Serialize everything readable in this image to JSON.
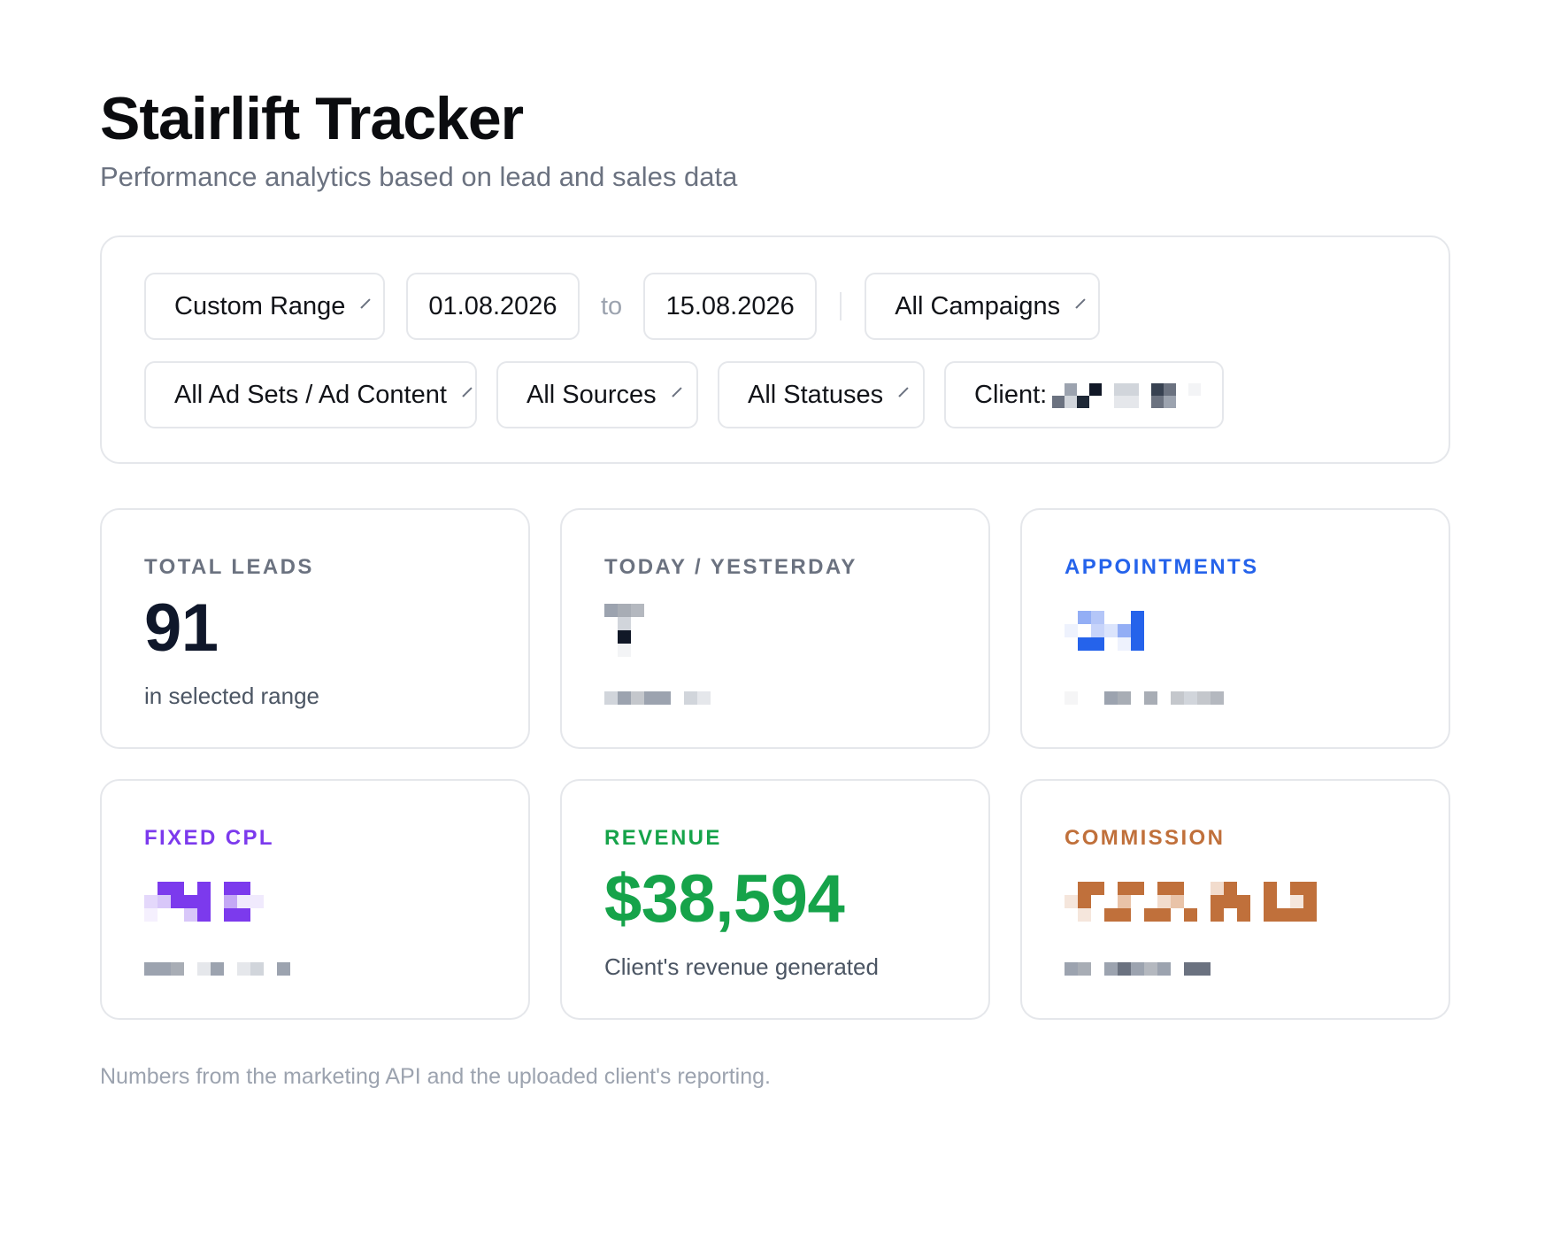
{
  "header": {
    "title": "Stairlift Tracker",
    "subtitle": "Performance analytics based on lead and sales data"
  },
  "filters": {
    "range_label": "Custom Range",
    "date_from": "01.08.2026",
    "to_label": "to",
    "date_to": "15.08.2026",
    "campaigns_label": "All Campaigns",
    "adsets_label": "All Ad Sets / Ad Content",
    "sources_label": "All Sources",
    "statuses_label": "All Statuses",
    "client_label": "Client:"
  },
  "cards": {
    "total_leads": {
      "label": "TOTAL LEADS",
      "value": "91",
      "sub": "in selected range",
      "color": "#6b7280"
    },
    "today_yesterday": {
      "label": "TODAY / YESTERDAY",
      "color": "#6b7280"
    },
    "appointments": {
      "label": "APPOINTMENTS",
      "color": "#2563eb"
    },
    "fixed_cpl": {
      "label": "FIXED CPL",
      "color": "#7c3aed"
    },
    "revenue": {
      "label": "REVENUE",
      "value": "$38,594",
      "sub": "Client's revenue generated",
      "color": "#16a34a"
    },
    "commission": {
      "label": "COMMISSION",
      "color": "#c0703b"
    }
  },
  "footer": {
    "note": "Numbers from the marketing API and the uploaded client's reporting."
  }
}
